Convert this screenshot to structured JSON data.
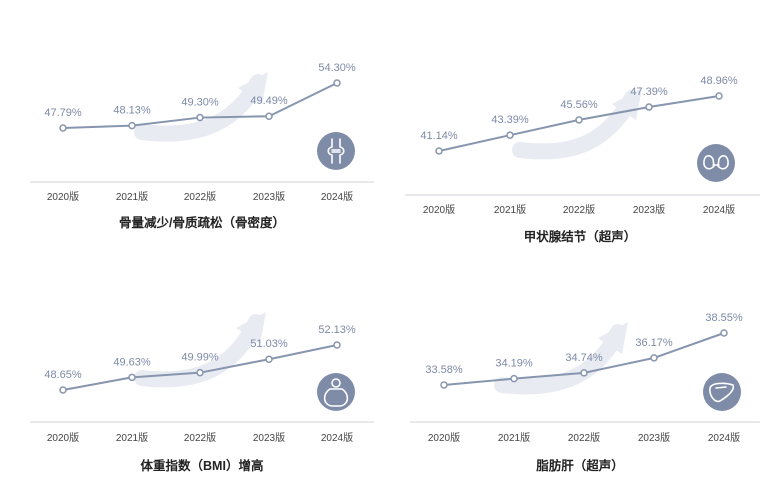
{
  "accent": "#8795ae",
  "icon_bg": "#7f8ca8",
  "arrow_color": "#e8ebf2",
  "chart_data": [
    {
      "type": "line",
      "title": "骨量减少/骨质疏松（骨密度）",
      "categories": [
        "2020版",
        "2021版",
        "2022版",
        "2023版",
        "2024版"
      ],
      "values": [
        47.79,
        48.13,
        49.3,
        49.49,
        54.3
      ],
      "labels": [
        "47.79%",
        "48.13%",
        "49.30%",
        "49.49%",
        "54.30%"
      ],
      "icon": "knee-joint-icon"
    },
    {
      "type": "line",
      "title": "甲状腺结节（超声）",
      "categories": [
        "2020版",
        "2021版",
        "2022版",
        "2023版",
        "2024版"
      ],
      "values": [
        41.14,
        43.39,
        45.56,
        47.39,
        48.96
      ],
      "labels": [
        "41.14%",
        "43.39%",
        "45.56%",
        "47.39%",
        "48.96%"
      ],
      "icon": "thyroid-icon"
    },
    {
      "type": "line",
      "title": "体重指数（BMI）增高",
      "categories": [
        "2020版",
        "2021版",
        "2022版",
        "2023版",
        "2024版"
      ],
      "values": [
        48.65,
        49.63,
        49.99,
        51.03,
        52.13
      ],
      "labels": [
        "48.65%",
        "49.63%",
        "49.99%",
        "51.03%",
        "52.13%"
      ],
      "icon": "overweight-person-icon"
    },
    {
      "type": "line",
      "title": "脂肪肝（超声）",
      "categories": [
        "2020版",
        "2021版",
        "2022版",
        "2023版",
        "2024版"
      ],
      "values": [
        33.58,
        34.19,
        34.74,
        36.17,
        38.55
      ],
      "labels": [
        "33.58%",
        "34.19%",
        "34.74%",
        "36.17%",
        "38.55%"
      ],
      "icon": "liver-icon"
    }
  ]
}
